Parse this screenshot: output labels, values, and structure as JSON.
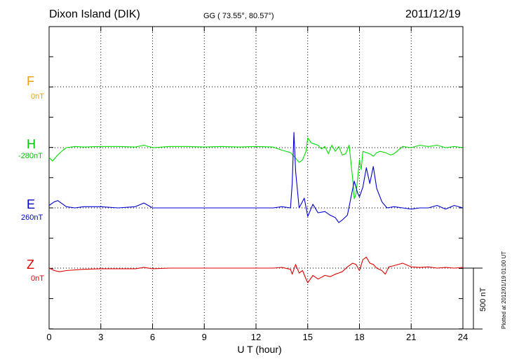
{
  "header": {
    "station": "Dixon Island (DIK)",
    "coords": "GG ( 73.55°,  80.57°)",
    "date": "2011/12/19"
  },
  "channels": [
    {
      "key": "F",
      "name": "F",
      "baseline": "0nT",
      "color": "#f0a000"
    },
    {
      "key": "H",
      "name": "H",
      "baseline": "-280nT",
      "color": "#00e000"
    },
    {
      "key": "E",
      "name": "E",
      "baseline": "260nT",
      "color": "#0000d0"
    },
    {
      "key": "Z",
      "name": "Z",
      "baseline": "0nT",
      "color": "#e00000"
    }
  ],
  "scale_bar": {
    "label": "500 nT",
    "value_nT": 500
  },
  "plotted_at": "Plotted at 2012/01/19 01:00 UT",
  "chart_data": {
    "type": "line",
    "xlabel": "U T (hour)",
    "xlim": [
      0,
      24
    ],
    "xticks": [
      0,
      3,
      6,
      9,
      12,
      15,
      18,
      21,
      24
    ],
    "grid": true,
    "series": [
      {
        "name": "H",
        "color": "#00e000",
        "baseline_nT": -280,
        "x": [
          0,
          0.2,
          0.5,
          0.8,
          1.0,
          1.5,
          2,
          3,
          4,
          5,
          5.5,
          6,
          7,
          8,
          9,
          10,
          11,
          12,
          13,
          13.5,
          14,
          14.2,
          14.5,
          14.7,
          14.9,
          15.0,
          15.2,
          15.4,
          15.6,
          15.8,
          16.0,
          16.2,
          16.4,
          16.6,
          16.8,
          17.0,
          17.2,
          17.4,
          17.6,
          17.7,
          17.8,
          17.9,
          18.0,
          18.1,
          18.2,
          18.4,
          18.6,
          18.8,
          19.0,
          19.2,
          19.5,
          19.8,
          20,
          20.5,
          21,
          21.5,
          22,
          22.5,
          23,
          23.5,
          24
        ],
        "y": [
          -80,
          -110,
          -60,
          -20,
          0,
          10,
          5,
          10,
          10,
          5,
          20,
          0,
          10,
          10,
          5,
          10,
          5,
          10,
          5,
          -20,
          -40,
          -70,
          -120,
          -100,
          -30,
          80,
          40,
          30,
          20,
          -10,
          10,
          -50,
          20,
          -30,
          10,
          -60,
          -50,
          20,
          -250,
          -420,
          -380,
          -250,
          -100,
          -180,
          -30,
          -40,
          -50,
          -70,
          -40,
          -30,
          -40,
          -60,
          -50,
          10,
          0,
          20,
          10,
          20,
          0,
          10,
          0
        ]
      },
      {
        "name": "E",
        "color": "#0000d0",
        "baseline_nT": 260,
        "x": [
          0,
          0.3,
          0.5,
          0.8,
          1.0,
          1.5,
          2,
          3,
          4,
          5,
          5.5,
          6,
          7,
          8,
          9,
          10,
          11,
          12,
          13,
          13.5,
          14,
          14.1,
          14.2,
          14.3,
          14.5,
          14.8,
          15.0,
          15.3,
          15.6,
          16.0,
          16.3,
          16.6,
          16.8,
          17.0,
          17.3,
          17.5,
          17.7,
          17.9,
          18.0,
          18.2,
          18.4,
          18.6,
          18.8,
          19.0,
          19.3,
          19.6,
          20,
          20.5,
          21,
          21.5,
          22,
          22.5,
          23,
          23.5,
          24
        ],
        "y": [
          20,
          50,
          60,
          30,
          10,
          0,
          10,
          10,
          0,
          10,
          40,
          0,
          0,
          0,
          0,
          0,
          0,
          0,
          0,
          10,
          0,
          200,
          620,
          300,
          0,
          80,
          -70,
          30,
          -40,
          -30,
          -60,
          -80,
          -120,
          -100,
          -60,
          80,
          220,
          120,
          90,
          170,
          330,
          200,
          340,
          160,
          50,
          0,
          10,
          0,
          -10,
          0,
          0,
          20,
          -10,
          20,
          0
        ]
      },
      {
        "name": "Z",
        "color": "#e00000",
        "baseline_nT": 0,
        "x": [
          0,
          0.3,
          0.6,
          1,
          2,
          3,
          4,
          5,
          5.5,
          6,
          7,
          8,
          9,
          10,
          11,
          12,
          13,
          13.5,
          14,
          14.1,
          14.3,
          14.5,
          14.7,
          14.9,
          15.0,
          15.3,
          15.6,
          16.0,
          16.3,
          16.6,
          16.8,
          17.0,
          17.3,
          17.6,
          17.8,
          18.0,
          18.2,
          18.4,
          18.6,
          18.8,
          19.0,
          19.3,
          19.5,
          19.7,
          20,
          20.5,
          21,
          21.5,
          22,
          22.5,
          23,
          23.5,
          24
        ],
        "y": [
          0,
          -20,
          -30,
          -20,
          -10,
          -5,
          -5,
          -5,
          5,
          -5,
          0,
          0,
          0,
          0,
          0,
          0,
          0,
          5,
          -10,
          -50,
          30,
          -40,
          -20,
          -90,
          -120,
          -60,
          -90,
          -60,
          -70,
          -50,
          -40,
          -30,
          10,
          40,
          30,
          -20,
          70,
          90,
          40,
          30,
          0,
          -20,
          -50,
          10,
          20,
          40,
          10,
          5,
          10,
          0,
          5,
          0,
          5
        ]
      }
    ]
  }
}
